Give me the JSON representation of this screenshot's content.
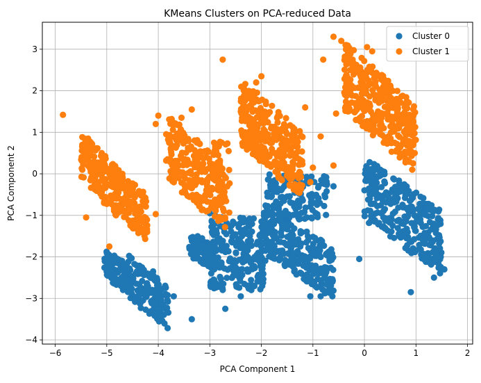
{
  "chart_data": {
    "type": "scatter",
    "title": "KMeans Clusters on PCA-reduced Data",
    "xlabel": "PCA Component 1",
    "ylabel": "PCA Component 2",
    "xlim": [
      -6.25,
      2.1
    ],
    "ylim": [
      -4.1,
      3.65
    ],
    "xticks": [
      -6,
      -5,
      -4,
      -3,
      -2,
      -1,
      0,
      1,
      2
    ],
    "yticks": [
      -4,
      -3,
      -2,
      -1,
      0,
      1,
      2,
      3
    ],
    "grid": true,
    "legend_position": "top-right",
    "series": [
      {
        "name": "Cluster 0",
        "color": "#1f77b4",
        "regions": [
          {
            "x": [
              -5.05,
              -4.5
            ],
            "y": [
              -3.0,
              -1.75
            ],
            "n": 90,
            "slope": -1.6
          },
          {
            "x": [
              -4.6,
              -3.8
            ],
            "y": [
              -3.8,
              -1.9
            ],
            "n": 130,
            "slope": -1.8
          },
          {
            "x": [
              -3.4,
              -2.9
            ],
            "y": [
              -2.4,
              -1.3
            ],
            "n": 80,
            "slope": -1.2
          },
          {
            "x": [
              -3.0,
              -1.9
            ],
            "y": [
              -2.8,
              -1.0
            ],
            "n": 230,
            "slope": 0.0
          },
          {
            "x": [
              -2.0,
              -0.6
            ],
            "y": [
              -2.95,
              -0.7
            ],
            "n": 280,
            "slope": -1.5
          },
          {
            "x": [
              -1.9,
              -0.7
            ],
            "y": [
              -1.1,
              0.0
            ],
            "n": 140,
            "slope": 0.0
          },
          {
            "x": [
              0.0,
              1.5
            ],
            "y": [
              -2.4,
              0.4
            ],
            "n": 320,
            "slope": -1.6
          }
        ],
        "points": [
          [
            -2.7,
            -3.25
          ],
          [
            -2.4,
            -2.95
          ],
          [
            -1.05,
            -2.95
          ],
          [
            -0.85,
            -2.95
          ],
          [
            -3.0,
            -0.95
          ],
          [
            -0.1,
            -2.05
          ],
          [
            0.9,
            -2.85
          ],
          [
            1.35,
            -2.5
          ],
          [
            -4.1,
            -2.35
          ],
          [
            -3.7,
            -2.95
          ],
          [
            -3.35,
            -3.5
          ],
          [
            1.55,
            -2.3
          ],
          [
            -2.2,
            -2.15
          ],
          [
            -2.9,
            -1.0
          ],
          [
            -0.95,
            -0.7
          ],
          [
            -0.6,
            -0.3
          ]
        ]
      },
      {
        "name": "Cluster 1",
        "color": "#ff7f0e",
        "regions": [
          {
            "x": [
              -5.5,
              -4.8
            ],
            "y": [
              -1.1,
              1.1
            ],
            "n": 150,
            "slope": -2.2
          },
          {
            "x": [
              -4.9,
              -4.2
            ],
            "y": [
              -1.7,
              0.3
            ],
            "n": 150,
            "slope": -2.0
          },
          {
            "x": [
              -3.85,
              -2.7
            ],
            "y": [
              -1.4,
              1.5
            ],
            "n": 250,
            "slope": -2.0
          },
          {
            "x": [
              -2.95,
              -2.6
            ],
            "y": [
              -1.0,
              0.8
            ],
            "n": 40,
            "slope": 0.0
          },
          {
            "x": [
              -2.4,
              -1.2
            ],
            "y": [
              -0.6,
              2.3
            ],
            "n": 340,
            "slope": -2.0
          },
          {
            "x": [
              -0.4,
              1.0
            ],
            "y": [
              0.1,
              3.1
            ],
            "n": 380,
            "slope": -2.0
          }
        ],
        "points": [
          [
            -5.85,
            1.42
          ],
          [
            -4.05,
            -0.97
          ],
          [
            -5.4,
            -1.05
          ],
          [
            -4.95,
            -1.75
          ],
          [
            -2.75,
            2.75
          ],
          [
            -3.35,
            1.55
          ],
          [
            -3.55,
            1.35
          ],
          [
            -1.15,
            1.6
          ],
          [
            -2.1,
            2.2
          ],
          [
            -2.0,
            2.35
          ],
          [
            -0.6,
            3.3
          ],
          [
            -0.45,
            3.2
          ],
          [
            0.05,
            3.05
          ],
          [
            0.15,
            2.95
          ],
          [
            -0.8,
            2.75
          ],
          [
            -0.85,
            0.9
          ],
          [
            -0.6,
            0.2
          ],
          [
            -1.0,
            0.15
          ],
          [
            -4.05,
            1.2
          ],
          [
            -3.05,
            0.55
          ],
          [
            -1.05,
            -0.2
          ],
          [
            -0.55,
            1.45
          ],
          [
            -4.0,
            1.4
          ],
          [
            0.95,
            1.4
          ]
        ]
      }
    ]
  }
}
